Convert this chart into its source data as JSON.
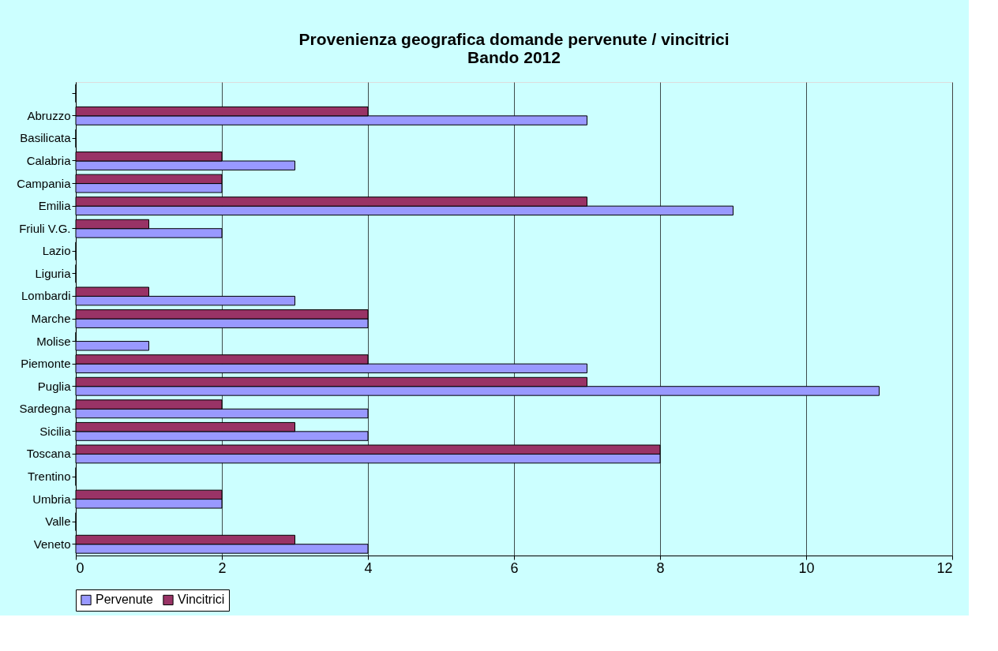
{
  "chart_data": {
    "type": "bar",
    "orientation": "horizontal",
    "title": [
      "Provenienza geografica domande pervenute / vincitrici",
      "Bando 2012"
    ],
    "categories": [
      null,
      "Abruzzo",
      "Basilicata",
      "Calabria",
      "Campania",
      "Emilia",
      "Friuli V.G.",
      "Lazio",
      "Liguria",
      "Lombardi",
      "Marche",
      "Molise",
      "Piemonte",
      "Puglia",
      "Sardegna",
      "Sicilia",
      "Toscana",
      "Trentino",
      "Umbria",
      "Valle",
      "Veneto"
    ],
    "series": [
      {
        "name": "Pervenute",
        "color": "#9999ff",
        "values": [
          0,
          7,
          0,
          3,
          2,
          9,
          2,
          0,
          0,
          3,
          4,
          1,
          7,
          11,
          4,
          4,
          8,
          0,
          2,
          0,
          4
        ]
      },
      {
        "name": "Vincitrici",
        "color": "#993366",
        "values": [
          0,
          4,
          0,
          2,
          2,
          7,
          1,
          0,
          0,
          1,
          4,
          0,
          4,
          7,
          2,
          3,
          8,
          0,
          2,
          0,
          3
        ]
      }
    ],
    "xlim": [
      0,
      12
    ],
    "xticks": [
      0,
      2,
      4,
      6,
      8,
      10,
      12
    ],
    "grid": "x",
    "legend": "bottom"
  }
}
